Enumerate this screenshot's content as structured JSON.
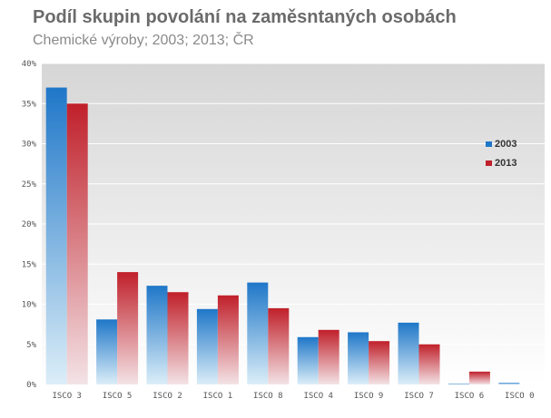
{
  "chart_data": {
    "type": "bar",
    "title": "Podíl skupin povolání na zaměsntaných osobách",
    "subtitle": "Chemické výroby; 2003; 2013; ČR",
    "categories": [
      "ISCO 3",
      "ISCO 5",
      "ISCO 2",
      "ISCO 1",
      "ISCO 8",
      "ISCO 4",
      "ISCO 9",
      "ISCO 7",
      "ISCO 6",
      "ISCO 0"
    ],
    "series": [
      {
        "name": "2003",
        "values": [
          37.0,
          8.1,
          12.3,
          9.4,
          12.7,
          5.9,
          6.5,
          7.7,
          0.1,
          0.2
        ],
        "color": "#1f77c8"
      },
      {
        "name": "2013",
        "values": [
          35.0,
          14.0,
          11.5,
          11.1,
          9.5,
          6.8,
          5.4,
          5.0,
          1.6,
          0.0
        ],
        "color": "#c0202a"
      }
    ],
    "ylim": [
      0,
      40
    ],
    "yticks": [
      "0%",
      "5%",
      "10%",
      "15%",
      "20%",
      "25%",
      "30%",
      "35%",
      "40%"
    ],
    "grid": true,
    "legend_position": "right"
  }
}
